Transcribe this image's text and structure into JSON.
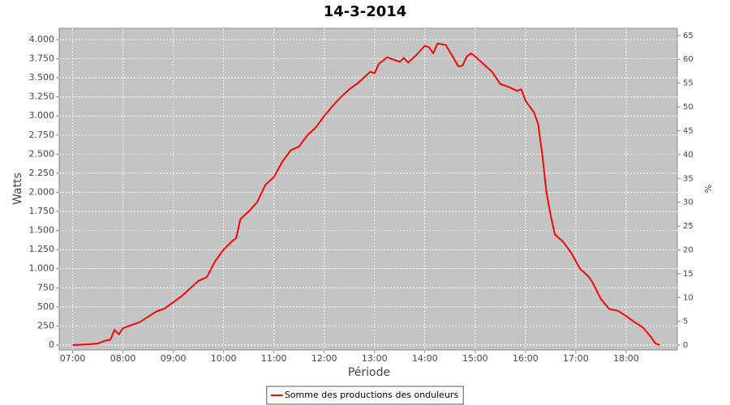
{
  "chart_data": {
    "type": "line",
    "title": "14-3-2014",
    "x_label": "Période",
    "y_label": "Watts",
    "y2_label": "%",
    "x": [
      "07:00",
      "07:10",
      "07:20",
      "07:30",
      "07:40",
      "07:45",
      "07:50",
      "07:55",
      "08:00",
      "08:10",
      "08:20",
      "08:30",
      "08:40",
      "08:50",
      "09:00",
      "09:10",
      "09:20",
      "09:30",
      "09:40",
      "09:50",
      "10:00",
      "10:10",
      "10:15",
      "10:20",
      "10:30",
      "10:40",
      "10:50",
      "11:00",
      "11:10",
      "11:20",
      "11:30",
      "11:40",
      "11:50",
      "12:00",
      "12:10",
      "12:20",
      "12:30",
      "12:40",
      "12:50",
      "12:55",
      "13:00",
      "13:05",
      "13:15",
      "13:30",
      "13:35",
      "13:40",
      "13:50",
      "14:00",
      "14:05",
      "14:10",
      "14:15",
      "14:25",
      "14:40",
      "14:45",
      "14:50",
      "14:55",
      "15:00",
      "15:10",
      "15:20",
      "15:30",
      "15:40",
      "15:50",
      "15:55",
      "16:00",
      "16:10",
      "16:15",
      "16:20",
      "16:25",
      "16:30",
      "16:35",
      "16:45",
      "16:55",
      "17:05",
      "17:15",
      "17:20",
      "17:30",
      "17:40",
      "17:50",
      "18:00",
      "18:10",
      "18:20",
      "18:30",
      "18:35",
      "18:40"
    ],
    "series": [
      {
        "name": "Somme des productions des onduleurs",
        "color": "#ff0000",
        "values": [
          0,
          5,
          10,
          20,
          60,
          70,
          200,
          140,
          220,
          260,
          300,
          370,
          440,
          480,
          560,
          640,
          740,
          840,
          890,
          1100,
          1250,
          1360,
          1400,
          1650,
          1750,
          1870,
          2100,
          2200,
          2400,
          2550,
          2600,
          2750,
          2850,
          3000,
          3130,
          3250,
          3350,
          3430,
          3530,
          3580,
          3560,
          3680,
          3770,
          3710,
          3760,
          3700,
          3800,
          3920,
          3900,
          3820,
          3950,
          3930,
          3650,
          3660,
          3780,
          3820,
          3780,
          3680,
          3580,
          3420,
          3380,
          3330,
          3350,
          3200,
          3050,
          2900,
          2500,
          2000,
          1700,
          1450,
          1350,
          1200,
          1000,
          900,
          820,
          600,
          470,
          450,
          380,
          300,
          230,
          100,
          20,
          0
        ]
      }
    ],
    "xlim": [
      "06:44",
      "19:01"
    ],
    "xticks": [
      "07:00",
      "08:00",
      "09:00",
      "10:00",
      "11:00",
      "12:00",
      "13:00",
      "14:00",
      "15:00",
      "16:00",
      "17:00",
      "18:00"
    ],
    "ylim": [
      -64,
      4148
    ],
    "yticks": [
      0,
      250,
      500,
      750,
      {
        "value": 1000,
        "label": "1.000"
      },
      {
        "value": 1250,
        "label": "1.250"
      },
      {
        "value": 1500,
        "label": "1.500"
      },
      {
        "value": 1750,
        "label": "1.750"
      },
      {
        "value": 2000,
        "label": "2.000"
      },
      {
        "value": 2250,
        "label": "2.250"
      },
      {
        "value": 2500,
        "label": "2.500"
      },
      {
        "value": 2750,
        "label": "2.750"
      },
      {
        "value": 3000,
        "label": "3.000"
      },
      {
        "value": 3250,
        "label": "3.250"
      },
      {
        "value": 3500,
        "label": "3.500"
      },
      {
        "value": 3750,
        "label": "3.750"
      },
      {
        "value": 4000,
        "label": "4.000"
      }
    ],
    "y2lim": [
      -1,
      66.5
    ],
    "y2ticks": [
      0,
      5,
      10,
      15,
      20,
      25,
      30,
      35,
      40,
      45,
      50,
      55,
      60,
      65
    ],
    "grid": true,
    "legend": "bottom"
  }
}
